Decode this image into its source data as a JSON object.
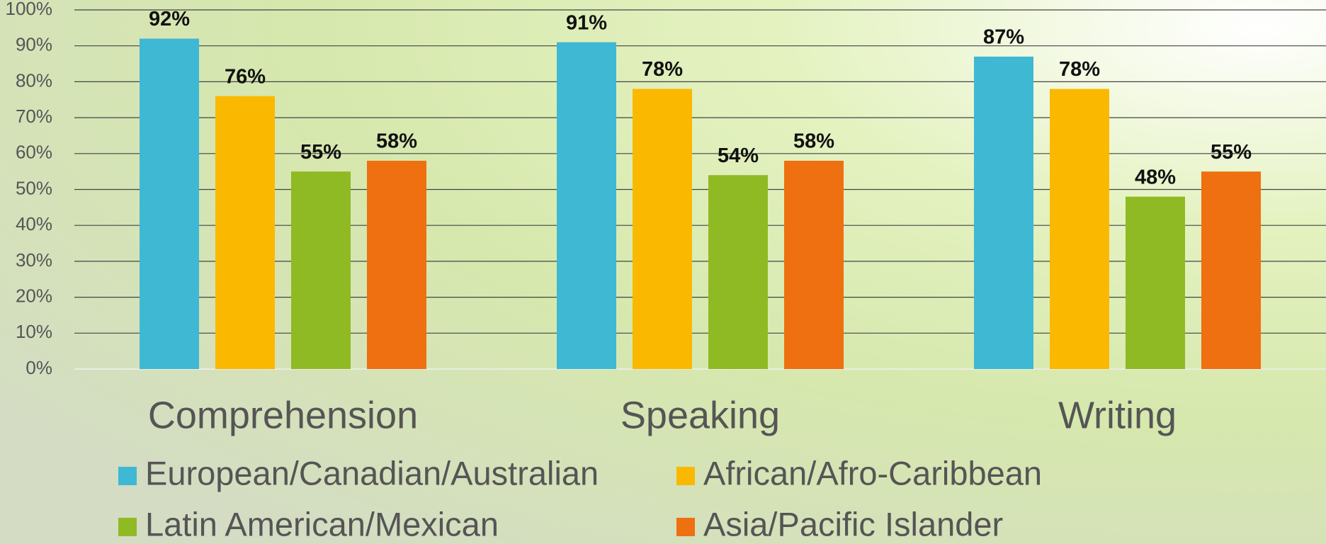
{
  "chart_data": {
    "type": "bar",
    "categories": [
      "Comprehension",
      "Speaking",
      "Writing"
    ],
    "series": [
      {
        "name": "European/Canadian/Australian",
        "color": "#3fb8d4",
        "values": [
          92,
          91,
          87
        ],
        "value_labels": [
          "92%",
          "91%",
          "87%"
        ]
      },
      {
        "name": "African/Afro-Caribbean",
        "color": "#fbb800",
        "values": [
          76,
          78,
          78
        ],
        "value_labels": [
          "76%",
          "78%",
          "78%"
        ]
      },
      {
        "name": "Latin American/Mexican",
        "color": "#8fba24",
        "values": [
          55,
          54,
          48
        ],
        "value_labels": [
          "55%",
          "54%",
          "48%"
        ]
      },
      {
        "name": "Asia/Pacific Islander",
        "color": "#ee7010",
        "values": [
          58,
          58,
          55
        ],
        "value_labels": [
          "58%",
          "58%",
          "55%"
        ]
      }
    ],
    "ylim": [
      0,
      100
    ],
    "yticks": [
      {
        "value": 0,
        "label": "0%"
      },
      {
        "value": 10,
        "label": "10%"
      },
      {
        "value": 20,
        "label": "20%"
      },
      {
        "value": 30,
        "label": "30%"
      },
      {
        "value": 40,
        "label": "40%"
      },
      {
        "value": 50,
        "label": "50%"
      },
      {
        "value": 60,
        "label": "60%"
      },
      {
        "value": 70,
        "label": "70%"
      },
      {
        "value": 80,
        "label": "80%"
      },
      {
        "value": 90,
        "label": "90%"
      },
      {
        "value": 100,
        "label": "100%"
      }
    ],
    "grid": true
  }
}
